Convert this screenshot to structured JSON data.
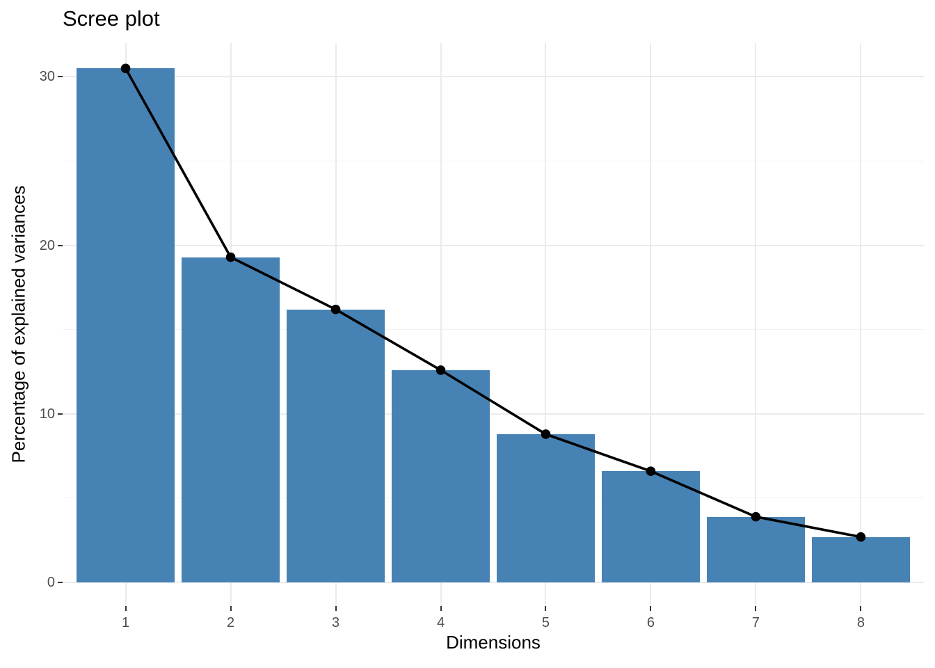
{
  "chart_data": {
    "type": "bar",
    "overlay": "line+point",
    "title": "Scree plot",
    "xlabel": "Dimensions",
    "ylabel": "Percentage of explained variances",
    "categories": [
      "1",
      "2",
      "3",
      "4",
      "5",
      "6",
      "7",
      "8"
    ],
    "values": [
      30.5,
      19.3,
      16.2,
      12.6,
      8.8,
      6.6,
      3.9,
      2.7
    ],
    "series": [
      {
        "name": "explained-variance-bars",
        "type": "bar",
        "values": [
          30.5,
          19.3,
          16.2,
          12.6,
          8.8,
          6.6,
          3.9,
          2.7
        ]
      },
      {
        "name": "explained-variance-line",
        "type": "line+point",
        "values": [
          30.5,
          19.3,
          16.2,
          12.6,
          8.8,
          6.6,
          3.9,
          2.7
        ]
      }
    ],
    "y_ticks": [
      0,
      10,
      20,
      30
    ],
    "y_tick_labels": [
      "0",
      "10",
      "20",
      "30"
    ],
    "y_minor_ticks": [
      5,
      15,
      25
    ],
    "ylim": [
      -1.4,
      32.0
    ],
    "grid": true,
    "legend": "none",
    "colors": {
      "bar_fill": "#4682B4",
      "line": "#000000",
      "point": "#000000",
      "grid_major": "#EBEBEB",
      "grid_minor": "#F2F2F2",
      "axis_text": "#4D4D4D",
      "tick_mark": "#333333",
      "title_text": "#000000",
      "background": "#FFFFFF"
    }
  }
}
